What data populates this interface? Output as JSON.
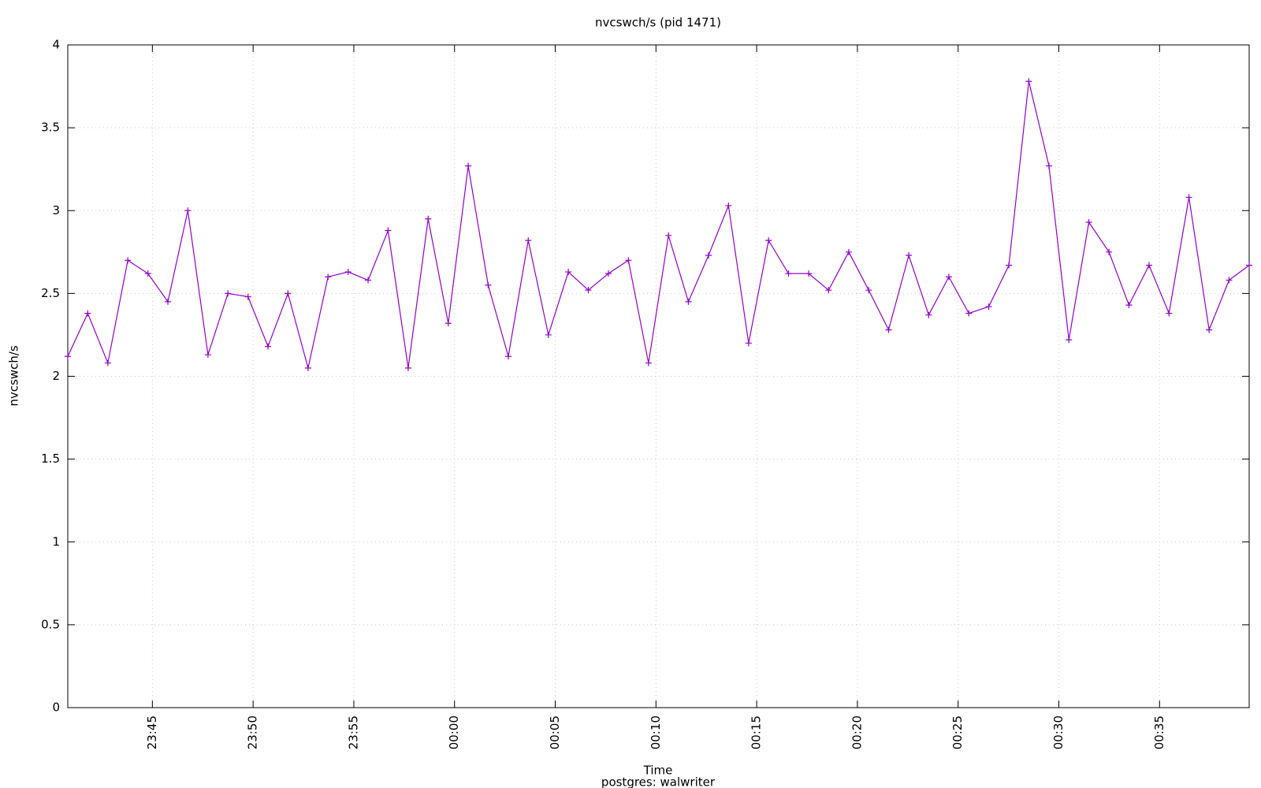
{
  "chart_data": {
    "type": "line",
    "title": "nvcswch/s (pid 1471)",
    "subtitle": "postgres: walwriter",
    "x_label": "Time",
    "y_label": "nvcswch/s",
    "color": "#9400d3",
    "grid": true,
    "x": [
      1420.8,
      1421.79,
      1422.79,
      1423.78,
      1424.78,
      1425.77,
      1426.76,
      1427.76,
      1428.75,
      1429.75,
      1430.74,
      1431.73,
      1432.73,
      1433.72,
      1434.72,
      1435.71,
      1436.7,
      1437.7,
      1438.69,
      1439.69,
      1440.68,
      1441.67,
      1442.67,
      1443.66,
      1444.66,
      1445.65,
      1446.64,
      1447.64,
      1448.63,
      1449.63,
      1450.62,
      1451.61,
      1452.61,
      1453.6,
      1454.6,
      1455.59,
      1456.58,
      1457.58,
      1458.57,
      1459.57,
      1460.56,
      1461.55,
      1462.55,
      1463.54,
      1464.54,
      1465.53,
      1466.52,
      1467.52,
      1468.51,
      1469.51,
      1470.5,
      1471.49,
      1472.49,
      1473.48,
      1474.48,
      1475.47,
      1476.46,
      1477.46,
      1478.45,
      1479.45
    ],
    "values": [
      2.12,
      2.38,
      2.08,
      2.7,
      2.62,
      2.45,
      3.0,
      2.13,
      2.5,
      2.48,
      2.18,
      2.5,
      2.05,
      2.6,
      2.63,
      2.58,
      2.88,
      2.05,
      2.95,
      2.32,
      3.27,
      2.55,
      2.12,
      2.82,
      2.25,
      2.63,
      2.52,
      2.62,
      2.7,
      2.08,
      2.85,
      2.45,
      2.73,
      3.03,
      2.2,
      2.82,
      2.62,
      2.62,
      2.52,
      2.75,
      2.52,
      2.28,
      2.73,
      2.37,
      2.6,
      2.38,
      2.42,
      2.67,
      3.78,
      3.27,
      2.22,
      2.93,
      2.75,
      2.43,
      2.67,
      2.38,
      3.08,
      2.28,
      2.58,
      2.67
    ],
    "xlim": [
      1420.8,
      1479.45
    ],
    "xticks": [
      {
        "value": 1425,
        "label": "23:45"
      },
      {
        "value": 1430,
        "label": "23:50"
      },
      {
        "value": 1435,
        "label": "23:55"
      },
      {
        "value": 1440,
        "label": "00:00"
      },
      {
        "value": 1445,
        "label": "00:05"
      },
      {
        "value": 1450,
        "label": "00:10"
      },
      {
        "value": 1455,
        "label": "00:15"
      },
      {
        "value": 1460,
        "label": "00:20"
      },
      {
        "value": 1465,
        "label": "00:25"
      },
      {
        "value": 1470,
        "label": "00:30"
      },
      {
        "value": 1475,
        "label": "00:35"
      }
    ],
    "ylim": [
      0,
      4
    ],
    "yticks": [
      0,
      0.5,
      1,
      1.5,
      2,
      2.5,
      3,
      3.5,
      4
    ]
  }
}
